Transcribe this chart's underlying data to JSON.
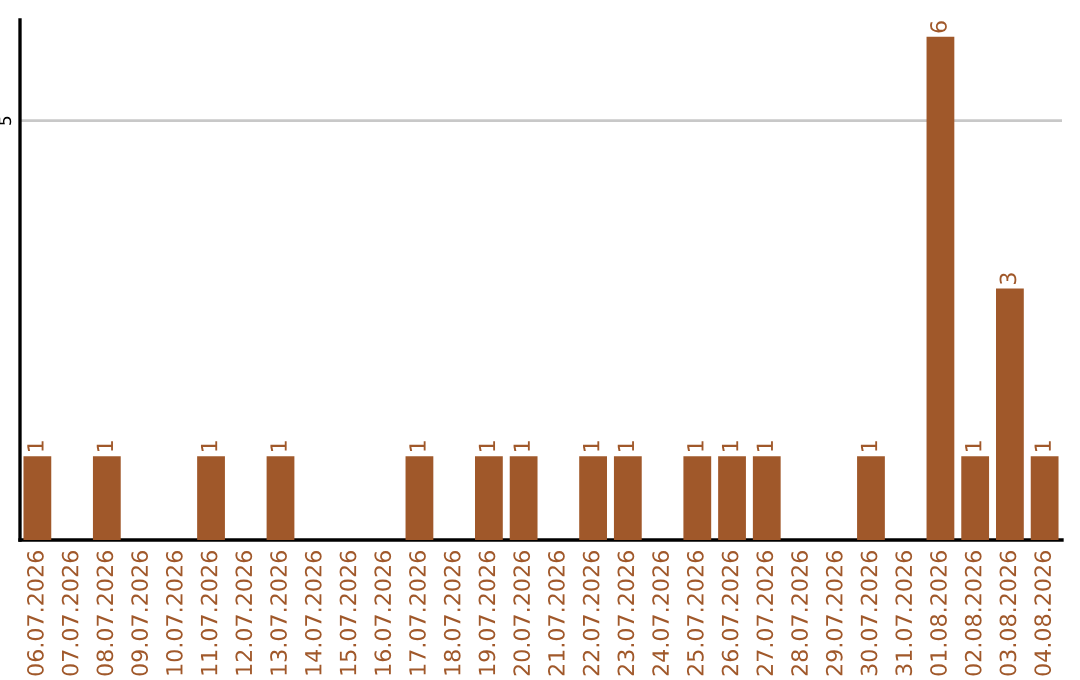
{
  "chart_data": {
    "type": "bar",
    "categories": [
      "06.07.2026",
      "07.07.2026",
      "08.07.2026",
      "09.07.2026",
      "10.07.2026",
      "11.07.2026",
      "12.07.2026",
      "13.07.2026",
      "14.07.2026",
      "15.07.2026",
      "16.07.2026",
      "17.07.2026",
      "18.07.2026",
      "19.07.2026",
      "20.07.2026",
      "21.07.2026",
      "22.07.2026",
      "23.07.2026",
      "24.07.2026",
      "25.07.2026",
      "26.07.2026",
      "27.07.2026",
      "28.07.2026",
      "29.07.2026",
      "30.07.2026",
      "31.07.2026",
      "01.08.2026",
      "02.08.2026",
      "03.08.2026",
      "04.08.2026"
    ],
    "values": [
      1,
      0,
      1,
      0,
      0,
      1,
      0,
      1,
      0,
      0,
      0,
      1,
      0,
      1,
      1,
      0,
      1,
      1,
      0,
      1,
      1,
      1,
      0,
      0,
      1,
      0,
      6,
      1,
      3,
      1
    ],
    "value_labels": [
      "1",
      null,
      "1",
      null,
      null,
      "1",
      null,
      "1",
      null,
      null,
      null,
      "1",
      null,
      "1",
      "1",
      null,
      "1",
      "1",
      null,
      "1",
      "1",
      "1",
      null,
      null,
      "1",
      null,
      "6",
      "1",
      "3",
      "1"
    ],
    "color": "#a0582a",
    "ylim": [
      0,
      6.2
    ],
    "yticks": [
      5
    ],
    "grid": "y",
    "legend": false
  }
}
